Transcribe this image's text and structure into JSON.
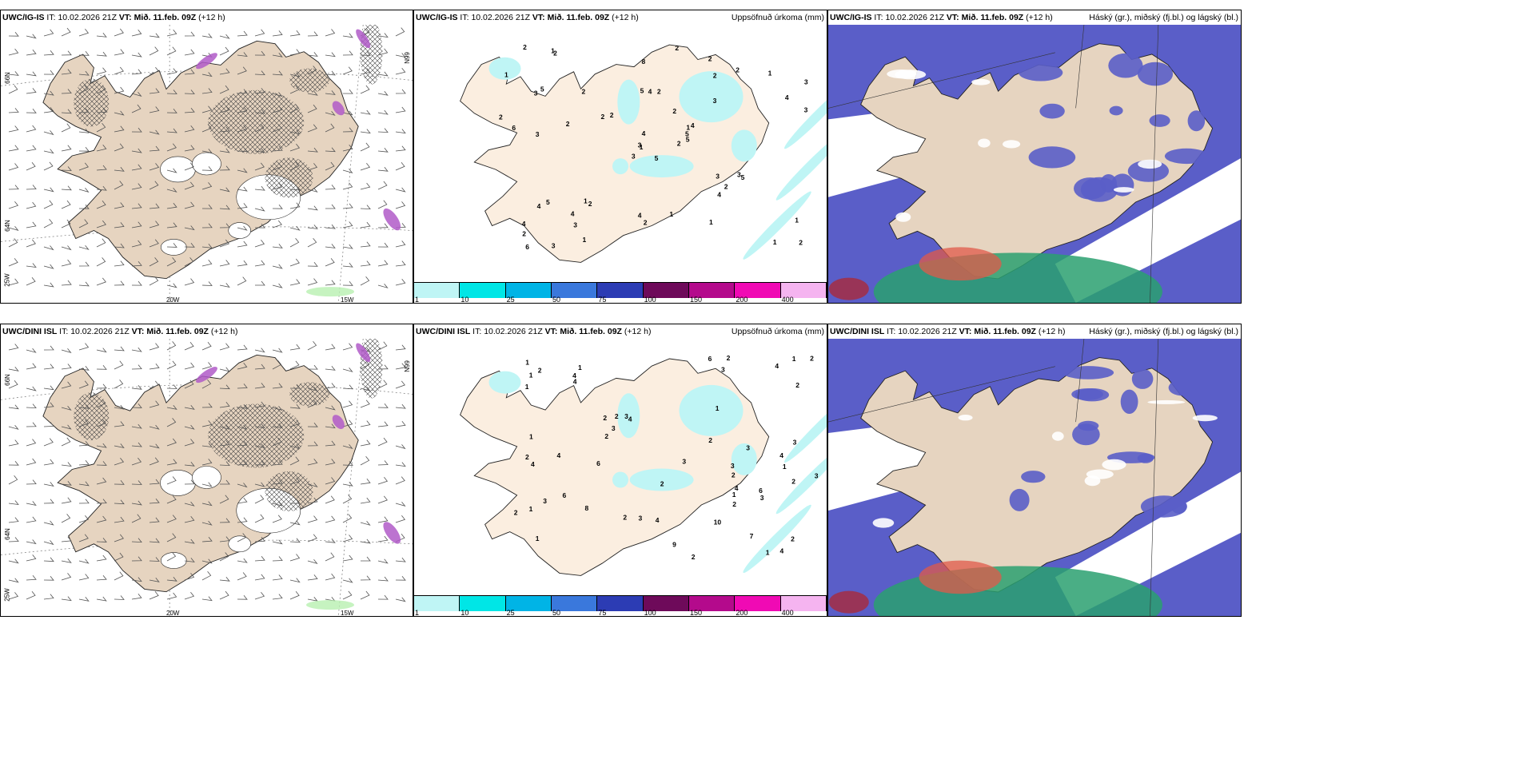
{
  "rows": [
    {
      "model": "UWC/IG-IS",
      "it_label": "IT:",
      "it_value": "10.02.2026 21Z",
      "vt_label": "VT:",
      "vt_value": "Mið. 11.feb. 09Z",
      "lead": "(+12 h)"
    },
    {
      "model": "UWC/DINI ISL",
      "it_label": "IT:",
      "it_value": "10.02.2026 21Z",
      "vt_label": "VT:",
      "vt_value": "Mið. 11.feb. 09Z",
      "lead": "(+12 h)"
    }
  ],
  "precip_title": "Uppsöfnuð úrkoma (mm)",
  "cloud_title": "Háský (gr.), miðský (fj.bl.) og lágský (bl.)",
  "axis_labels": {
    "lat66": "66N",
    "lat64": "64N",
    "lon25": "25W",
    "lon20": "20W",
    "lon15": "15W"
  },
  "colorbar": {
    "ticks": [
      "1",
      "10",
      "25",
      "50",
      "75",
      "100",
      "150",
      "200",
      "400"
    ],
    "colors": [
      "#bff5f5",
      "#00e6e6",
      "#00b4e6",
      "#3a78dc",
      "#2c3cb4",
      "#6e0a5a",
      "#b40a8c",
      "#f00ab4",
      "#f5b4f0"
    ]
  },
  "precip_values_top": [
    "5",
    "3",
    "1",
    "4",
    "1",
    "2",
    "2",
    "2",
    "2",
    "2",
    "2",
    "2",
    "3",
    "3",
    "3",
    "3",
    "3",
    "5",
    "2",
    "5",
    "2",
    "2",
    "3",
    "4",
    "4",
    "5",
    "5",
    "8",
    "6",
    "3",
    "3",
    "3",
    "4",
    "4",
    "2",
    "2",
    "1",
    "1",
    "1",
    "3",
    "2",
    "2",
    "2",
    "4",
    "1",
    "2",
    "5",
    "6",
    "2",
    "5",
    "4",
    "4",
    "1",
    "2",
    "1",
    "4",
    "1",
    "2",
    "1",
    "1"
  ],
  "precip_values_bottom": [
    "2",
    "1",
    "1",
    "1",
    "4",
    "7",
    "1",
    "3",
    "2",
    "2",
    "1",
    "2",
    "1",
    "2",
    "2",
    "3",
    "2",
    "3",
    "3",
    "6",
    "2",
    "4",
    "2",
    "2",
    "6",
    "4",
    "4",
    "4",
    "4",
    "3",
    "9",
    "10",
    "3",
    "6",
    "4",
    "3",
    "1",
    "4",
    "4",
    "3",
    "2",
    "2",
    "4",
    "3",
    "6",
    "8",
    "2",
    "2",
    "2",
    "1",
    "3",
    "2",
    "1",
    "3",
    "2",
    "1",
    "1",
    "1"
  ]
}
